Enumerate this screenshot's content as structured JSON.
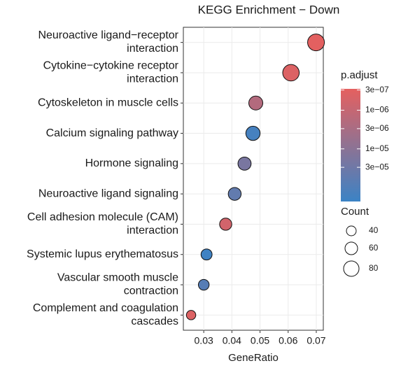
{
  "chart_data": {
    "type": "dot",
    "title": "KEGG Enrichment − Down",
    "x_label": "GeneRatio",
    "categories": [
      "Neuroactive ligand−receptor\ninteraction",
      "Cytokine−cytokine receptor\ninteraction",
      "Cytoskeleton in muscle cells",
      "Calcium signaling pathway",
      "Hormone signaling",
      "Neuroactive ligand signaling",
      "Cell adhesion molecule (CAM)\ninteraction",
      "Systemic lupus erythematosus",
      "Vascular smooth muscle\ncontraction",
      "Complement and coagulation\ncascades"
    ],
    "x": [
      0.0699,
      0.061,
      0.0485,
      0.0475,
      0.0445,
      0.041,
      0.0378,
      0.031,
      0.03,
      0.0255
    ],
    "color_values": [
      3e-07,
      4e-07,
      2e-06,
      0.00015,
      2e-05,
      5e-05,
      6e-07,
      0.0002,
      8e-05,
      4e-07
    ],
    "size_values": [
      90,
      88,
      70,
      72,
      64,
      62,
      57,
      49,
      47,
      37
    ],
    "xlim": [
      0.02275,
      0.0725
    ],
    "xticks": [
      0.03,
      0.04,
      0.05,
      0.06,
      0.07
    ],
    "grid": true,
    "color_legend": {
      "title": "p.adjust",
      "log_scale": true,
      "lim": [
        2.8e-07,
        0.00023
      ],
      "ticks": [
        {
          "value": 3e-07,
          "label": "3e−07"
        },
        {
          "value": 1e-06,
          "label": "1e−06"
        },
        {
          "value": 3e-06,
          "label": "3e−06"
        },
        {
          "value": 1e-05,
          "label": "1e−05"
        },
        {
          "value": 3e-05,
          "label": "3e−05"
        }
      ],
      "colors": [
        "#e5605f",
        "#3b83c5"
      ]
    },
    "size_legend": {
      "title": "Count",
      "ticks": [
        40,
        60,
        80
      ]
    }
  }
}
